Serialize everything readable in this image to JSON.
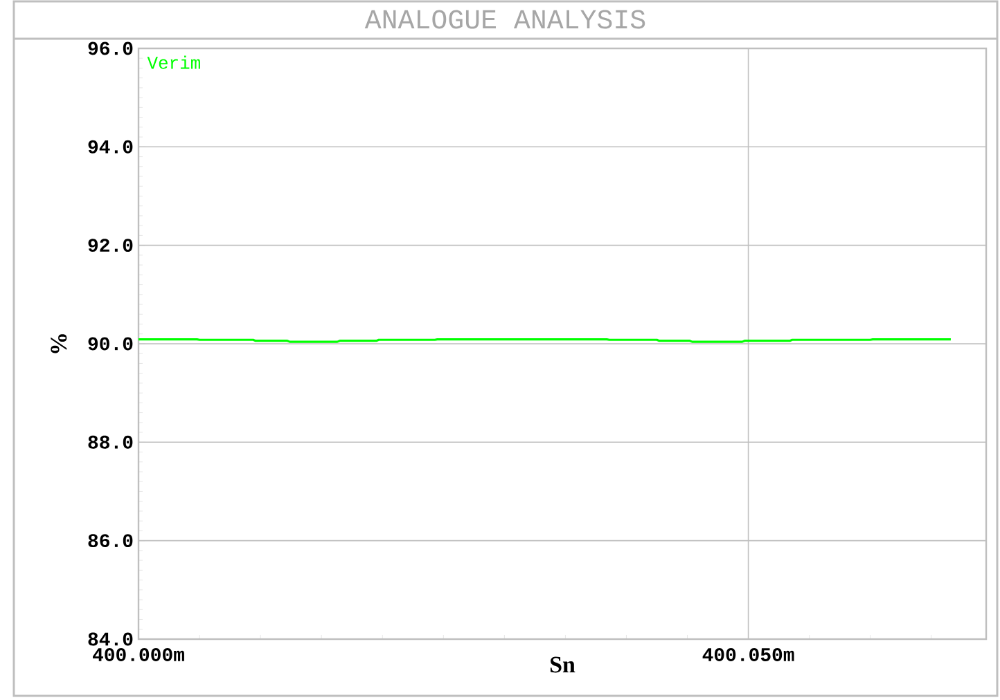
{
  "chart_data": {
    "type": "line",
    "title": "ANALOGUE ANALYSIS",
    "xlabel": "Sn",
    "ylabel": "%",
    "xlim": [
      400.0,
      400.0695
    ],
    "ylim": [
      84,
      96
    ],
    "xticks": [
      {
        "value": 400.0,
        "label": "400.000m"
      },
      {
        "value": 400.005,
        "label": null
      },
      {
        "value": 400.01,
        "label": null
      },
      {
        "value": 400.015,
        "label": null
      },
      {
        "value": 400.02,
        "label": null
      },
      {
        "value": 400.025,
        "label": null
      },
      {
        "value": 400.03,
        "label": null
      },
      {
        "value": 400.035,
        "label": null
      },
      {
        "value": 400.04,
        "label": null
      },
      {
        "value": 400.045,
        "label": null
      },
      {
        "value": 400.05,
        "label": "400.050m"
      },
      {
        "value": 400.055,
        "label": null
      },
      {
        "value": 400.06,
        "label": null
      },
      {
        "value": 400.065,
        "label": null
      }
    ],
    "yticks": [
      {
        "value": 84,
        "label": "84.0"
      },
      {
        "value": 86,
        "label": "86.0"
      },
      {
        "value": 88,
        "label": "88.0"
      },
      {
        "value": 90,
        "label": "90.0"
      },
      {
        "value": 92,
        "label": "92.0"
      },
      {
        "value": 94,
        "label": "94.0"
      },
      {
        "value": 96,
        "label": "96.0"
      }
    ],
    "grid": true,
    "legend": "top left",
    "series": [
      {
        "name": "Verim",
        "color": "#00ff00",
        "x": [
          400.0,
          400.0048,
          400.005,
          400.0094,
          400.0096,
          400.0122,
          400.0124,
          400.0163,
          400.0165,
          400.0195,
          400.0197,
          400.0243,
          400.0245,
          400.0384,
          400.0386,
          400.0425,
          400.0427,
          400.0452,
          400.0454,
          400.0495,
          400.0497,
          400.0534,
          400.0536,
          400.06,
          400.0602,
          400.0666
        ],
        "values": [
          90.09,
          90.09,
          90.08,
          90.08,
          90.06,
          90.06,
          90.04,
          90.04,
          90.06,
          90.06,
          90.08,
          90.08,
          90.09,
          90.09,
          90.08,
          90.08,
          90.06,
          90.06,
          90.04,
          90.04,
          90.06,
          90.06,
          90.08,
          90.08,
          90.09,
          90.09
        ]
      }
    ]
  }
}
